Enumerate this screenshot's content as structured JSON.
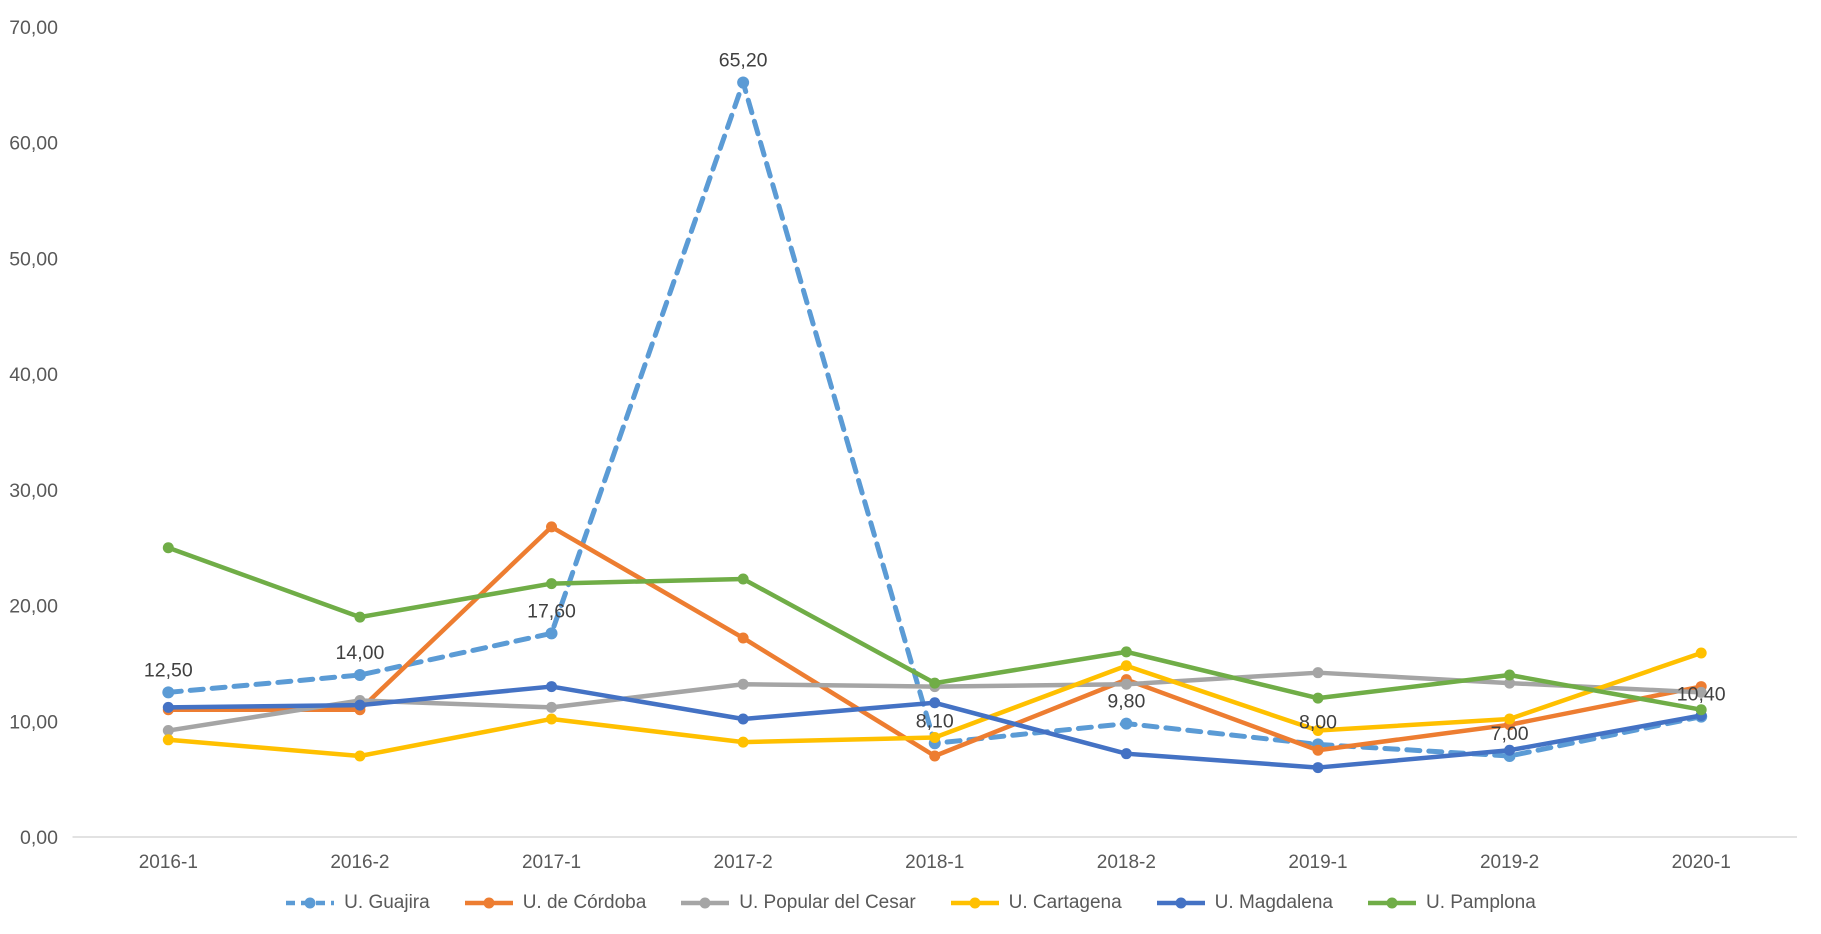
{
  "chart_data": {
    "type": "line",
    "title": "",
    "xlabel": "",
    "ylabel": "",
    "grid": false,
    "legend_position": "bottom",
    "axis_color": "#D9D9D9",
    "tick_color": "#595959",
    "label_color": "#404040",
    "categories": [
      "2016-1",
      "2016-2",
      "2017-1",
      "2017-2",
      "2018-1",
      "2018-2",
      "2019-1",
      "2019-2",
      "2020-1"
    ],
    "y_axis": {
      "min": 0,
      "max": 70,
      "step": 10,
      "tick_labels": [
        "0,00",
        "10,00",
        "20,00",
        "30,00",
        "40,00",
        "50,00",
        "60,00",
        "70,00"
      ]
    },
    "series": [
      {
        "name": "U. Guajira",
        "color": "#5B9BD5",
        "dashed": true,
        "values": [
          12.5,
          14.0,
          17.6,
          65.2,
          8.1,
          9.8,
          8.0,
          7.0,
          10.4
        ],
        "data_labels": [
          "12,50",
          "14,00",
          "17,60",
          "65,20",
          "8,10",
          "9,80",
          "8,00",
          "7,00",
          "10,40"
        ]
      },
      {
        "name": "U. de Córdoba",
        "color": "#ED7D31",
        "dashed": false,
        "values": [
          11.0,
          11.0,
          26.8,
          17.2,
          7.0,
          13.6,
          7.5,
          9.7,
          13.0
        ]
      },
      {
        "name": "U. Popular del Cesar",
        "color": "#A5A5A5",
        "dashed": false,
        "values": [
          9.2,
          11.8,
          11.2,
          13.2,
          13.0,
          13.2,
          14.2,
          13.3,
          12.5
        ]
      },
      {
        "name": "U. Cartagena",
        "color": "#FFC000",
        "dashed": false,
        "values": [
          8.4,
          7.0,
          10.2,
          8.2,
          8.6,
          14.8,
          9.2,
          10.2,
          15.9
        ]
      },
      {
        "name": "U. Magdalena",
        "color": "#4472C4",
        "dashed": false,
        "values": [
          11.2,
          11.4,
          13.0,
          10.2,
          11.6,
          7.2,
          6.0,
          7.5,
          10.5
        ]
      },
      {
        "name": "U. Pamplona",
        "color": "#70AD47",
        "dashed": false,
        "values": [
          25.0,
          19.0,
          21.9,
          22.3,
          13.3,
          16.0,
          12.0,
          14.0,
          11.0
        ]
      }
    ]
  }
}
